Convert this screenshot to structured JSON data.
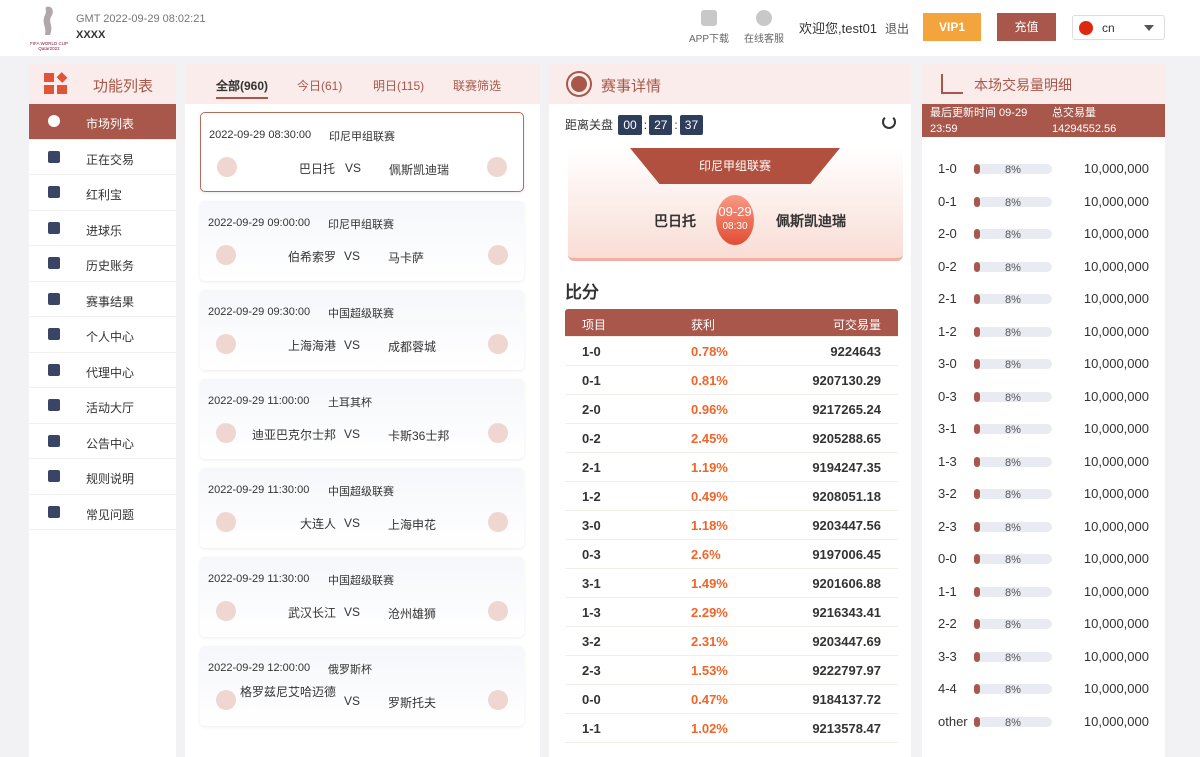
{
  "header": {
    "gmt": "GMT   2022-09-29 08:02:21",
    "site": "XXXX",
    "app_download": "APP下载",
    "online_service": "在线客服",
    "welcome": "欢迎您,test01",
    "logout": "退出",
    "vip": "VIP1",
    "recharge": "充值",
    "lang": "cn"
  },
  "sidebar": {
    "title": "功能列表",
    "items": [
      {
        "label": "市场列表",
        "icon": "soccer-ball-icon",
        "active": true
      },
      {
        "label": "正在交易",
        "icon": "money-bag-icon"
      },
      {
        "label": "红利宝",
        "icon": "coins-icon"
      },
      {
        "label": "进球乐",
        "icon": "goal-net-icon"
      },
      {
        "label": "历史账务",
        "icon": "ledger-icon"
      },
      {
        "label": "赛事结果",
        "icon": "trophy-icon"
      },
      {
        "label": "个人中心",
        "icon": "user-icon"
      },
      {
        "label": "代理中心",
        "icon": "org-chart-icon"
      },
      {
        "label": "活动大厅",
        "icon": "gift-icon"
      },
      {
        "label": "公告中心",
        "icon": "announcement-icon"
      },
      {
        "label": "规则说明",
        "icon": "document-icon"
      },
      {
        "label": "常见问题",
        "icon": "question-icon"
      }
    ]
  },
  "match_tabs": [
    {
      "label": "全部(960)",
      "active": true
    },
    {
      "label": "今日(61)"
    },
    {
      "label": "明日(115)"
    },
    {
      "label": "联赛筛选"
    }
  ],
  "matches": [
    {
      "time": "2022-09-29 08:30:00",
      "league": "印尼甲组联赛",
      "home": "巴日托",
      "away": "佩斯凯迪瑞",
      "selected": true
    },
    {
      "time": "2022-09-29 09:00:00",
      "league": "印尼甲组联赛",
      "home": "伯希索罗",
      "away": "马卡萨"
    },
    {
      "time": "2022-09-29 09:30:00",
      "league": "中国超级联赛",
      "home": "上海海港",
      "away": "成都蓉城"
    },
    {
      "time": "2022-09-29 11:00:00",
      "league": "土耳其杯",
      "home": "迪亚巴克尔士邦",
      "away": "卡斯36士邦"
    },
    {
      "time": "2022-09-29 11:30:00",
      "league": "中国超级联赛",
      "home": "大连人",
      "away": "上海申花"
    },
    {
      "time": "2022-09-29 11:30:00",
      "league": "中国超级联赛",
      "home": "武汉长江",
      "away": "沧州雄狮"
    },
    {
      "time": "2022-09-29 12:00:00",
      "league": "俄罗斯杯",
      "home": "格罗兹尼艾哈迈德",
      "away": "罗斯托夫"
    }
  ],
  "vs": "VS",
  "detail": {
    "title": "赛事详情",
    "countdown_label": "距离关盘",
    "countdown": [
      "00",
      "27",
      "37"
    ],
    "league": "印尼甲组联赛",
    "home": "巴日托",
    "away": "佩斯凯迪瑞",
    "date": "09-29",
    "time": "08:30",
    "score_title": "比分",
    "columns": [
      "项目",
      "获利",
      "可交易量"
    ],
    "rows": [
      [
        "1-0",
        "0.78%",
        "9224643"
      ],
      [
        "0-1",
        "0.81%",
        "9207130.29"
      ],
      [
        "2-0",
        "0.96%",
        "9217265.24"
      ],
      [
        "0-2",
        "2.45%",
        "9205288.65"
      ],
      [
        "2-1",
        "1.19%",
        "9194247.35"
      ],
      [
        "1-2",
        "0.49%",
        "9208051.18"
      ],
      [
        "3-0",
        "1.18%",
        "9203447.56"
      ],
      [
        "0-3",
        "2.6%",
        "9197006.45"
      ],
      [
        "3-1",
        "1.49%",
        "9201606.88"
      ],
      [
        "1-3",
        "2.29%",
        "9216343.41"
      ],
      [
        "3-2",
        "2.31%",
        "9203447.69"
      ],
      [
        "2-3",
        "1.53%",
        "9222797.97"
      ],
      [
        "0-0",
        "0.47%",
        "9184137.72"
      ],
      [
        "1-1",
        "1.02%",
        "9213578.47"
      ]
    ]
  },
  "volume": {
    "title": "本场交易量明细",
    "updated_label": "最后更新时间 09-29 23:59",
    "total_label": "总交易量",
    "total": "14294552.56",
    "rows": [
      [
        "1-0",
        8,
        "10,000,000"
      ],
      [
        "0-1",
        8,
        "10,000,000"
      ],
      [
        "2-0",
        8,
        "10,000,000"
      ],
      [
        "0-2",
        8,
        "10,000,000"
      ],
      [
        "2-1",
        8,
        "10,000,000"
      ],
      [
        "1-2",
        8,
        "10,000,000"
      ],
      [
        "3-0",
        8,
        "10,000,000"
      ],
      [
        "0-3",
        8,
        "10,000,000"
      ],
      [
        "3-1",
        8,
        "10,000,000"
      ],
      [
        "1-3",
        8,
        "10,000,000"
      ],
      [
        "3-2",
        8,
        "10,000,000"
      ],
      [
        "2-3",
        8,
        "10,000,000"
      ],
      [
        "0-0",
        8,
        "10,000,000"
      ],
      [
        "1-1",
        8,
        "10,000,000"
      ],
      [
        "2-2",
        8,
        "10,000,000"
      ],
      [
        "3-3",
        8,
        "10,000,000"
      ],
      [
        "4-4",
        8,
        "10,000,000"
      ],
      [
        "other",
        8,
        "10,000,000"
      ]
    ]
  },
  "colors": {
    "brand": "#a8574a",
    "vip": "#f3a43c",
    "profit": "#f0652a",
    "countdown": "#2f3d5c"
  }
}
